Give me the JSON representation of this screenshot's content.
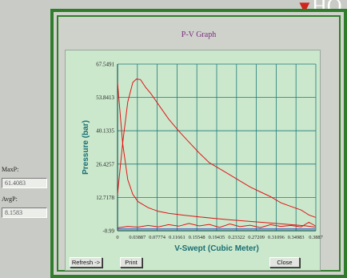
{
  "logo": {
    "word": "HO"
  },
  "window": {
    "title": "P-V Graph"
  },
  "side": {
    "max_label": "MaxP:",
    "max_value": "61.4083",
    "avg_label": "AvgP:",
    "avg_value": "8.1583"
  },
  "buttons": {
    "refresh": "Refresh ->",
    "print": "Print",
    "close": "Close"
  },
  "colors": {
    "frame": "#2f7d2a",
    "plot_bg": "#cbe8cc",
    "grid": "#1f7a7a",
    "curve": "#e01616",
    "axis_title": "#1a6e73"
  },
  "chart_data": {
    "type": "line",
    "title": "P-V Graph",
    "xlabel": "V-Swept (Cubic Meter)",
    "ylabel": "Pressure (bar)",
    "xlim": [
      0,
      0.3887
    ],
    "ylim": [
      -0.99,
      67.5491
    ],
    "x_ticks": [
      0,
      0.03887,
      0.07774,
      0.11661,
      0.15548,
      0.19435,
      0.23322,
      0.27209,
      0.31096,
      0.34983,
      0.3887
    ],
    "x_tick_labels": [
      "0",
      "0.03887",
      "0.07774",
      "0.11661",
      "0.15548",
      "0.19435",
      "0.23322",
      "0.27209",
      "0.31096",
      "0.34983",
      "0.3887"
    ],
    "y_ticks": [
      -0.99,
      12.7178,
      26.4257,
      40.1335,
      53.8413,
      67.5491
    ],
    "y_tick_labels": [
      "-0.99",
      "12.7178",
      "26.4257",
      "40.1335",
      "53.8413",
      "67.5491"
    ],
    "grid": true,
    "series": [
      {
        "color": "#e01616",
        "x": [
          0.0,
          0.01,
          0.02,
          0.03,
          0.037,
          0.045,
          0.055,
          0.065,
          0.08,
          0.1,
          0.12,
          0.14,
          0.16,
          0.18,
          0.2,
          0.22,
          0.24,
          0.26,
          0.28,
          0.3,
          0.32,
          0.34,
          0.36,
          0.375,
          0.388
        ],
        "y": [
          14.0,
          35.0,
          52.0,
          60.0,
          61.4,
          61.2,
          58.0,
          55.5,
          51.0,
          45.0,
          40.0,
          35.5,
          31.0,
          27.0,
          24.5,
          22.0,
          19.5,
          17.0,
          15.0,
          13.0,
          10.5,
          9.0,
          7.5,
          5.5,
          4.5
        ]
      },
      {
        "color": "#e01616",
        "x": [
          0.0,
          0.01,
          0.02,
          0.03,
          0.04,
          0.06,
          0.08,
          0.1,
          0.13,
          0.16,
          0.19,
          0.22,
          0.25,
          0.28,
          0.31,
          0.34,
          0.37,
          0.388
        ],
        "y": [
          60.0,
          35.0,
          20.0,
          14.0,
          11.0,
          8.5,
          7.0,
          6.2,
          5.4,
          4.7,
          4.1,
          3.5,
          3.0,
          2.5,
          2.0,
          1.5,
          1.0,
          0.5
        ]
      },
      {
        "color": "#e01616",
        "x": [
          0.0,
          0.02,
          0.04,
          0.06,
          0.08,
          0.1,
          0.12,
          0.14,
          0.16,
          0.18,
          0.2,
          0.22,
          0.24,
          0.26,
          0.28,
          0.3,
          0.32,
          0.34,
          0.36,
          0.375,
          0.388
        ],
        "y": [
          0.2,
          0.8,
          0.5,
          1.2,
          0.6,
          1.5,
          0.9,
          2.0,
          1.0,
          1.6,
          0.4,
          1.8,
          0.7,
          1.3,
          0.3,
          1.5,
          0.8,
          1.2,
          0.6,
          2.5,
          1.0
        ]
      },
      {
        "color": "#2233bb",
        "x": [
          0.0,
          0.388
        ],
        "y": [
          -0.3,
          -0.3
        ]
      }
    ]
  }
}
